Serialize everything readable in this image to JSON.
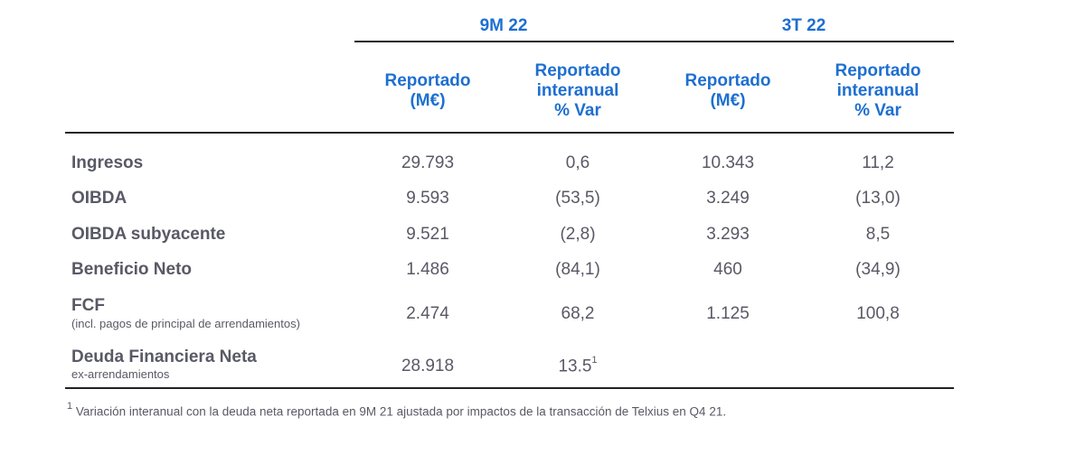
{
  "periods": {
    "p1": "9M 22",
    "p2": "3T 22"
  },
  "columns": {
    "c1": [
      "Reportado",
      "(M€)"
    ],
    "c2": [
      "Reportado",
      "interanual",
      "% Var"
    ],
    "c3": [
      "Reportado",
      "(M€)"
    ],
    "c4": [
      "Reportado",
      "interanual",
      "% Var"
    ]
  },
  "rows": [
    {
      "label": "Ingresos",
      "values": [
        "29.793",
        "0,6",
        "10.343",
        "11,2"
      ]
    },
    {
      "label": "OIBDA",
      "values": [
        "9.593",
        "(53,5)",
        "3.249",
        "(13,0)"
      ]
    },
    {
      "label": "OIBDA subyacente",
      "values": [
        "9.521",
        "(2,8)",
        "3.293",
        "8,5"
      ]
    },
    {
      "label": "Beneficio Neto",
      "values": [
        "1.486",
        "(84,1)",
        "460",
        "(34,9)"
      ]
    },
    {
      "label": "FCF",
      "sublabel": "(incl. pagos de principal de arrendamientos)",
      "values": [
        "2.474",
        "68,2",
        "1.125",
        "100,8"
      ]
    },
    {
      "label": "Deuda Financiera Neta",
      "sublabel": "ex-arrendamientos",
      "values": [
        "28.918",
        "13.5",
        "",
        ""
      ],
      "sup": "1"
    }
  ],
  "footnote": {
    "mark": "1",
    "text": " Variación interanual con la deuda neta reportada en 9M 21 ajustada por impactos de la transacción de Telxius en Q4 21."
  }
}
